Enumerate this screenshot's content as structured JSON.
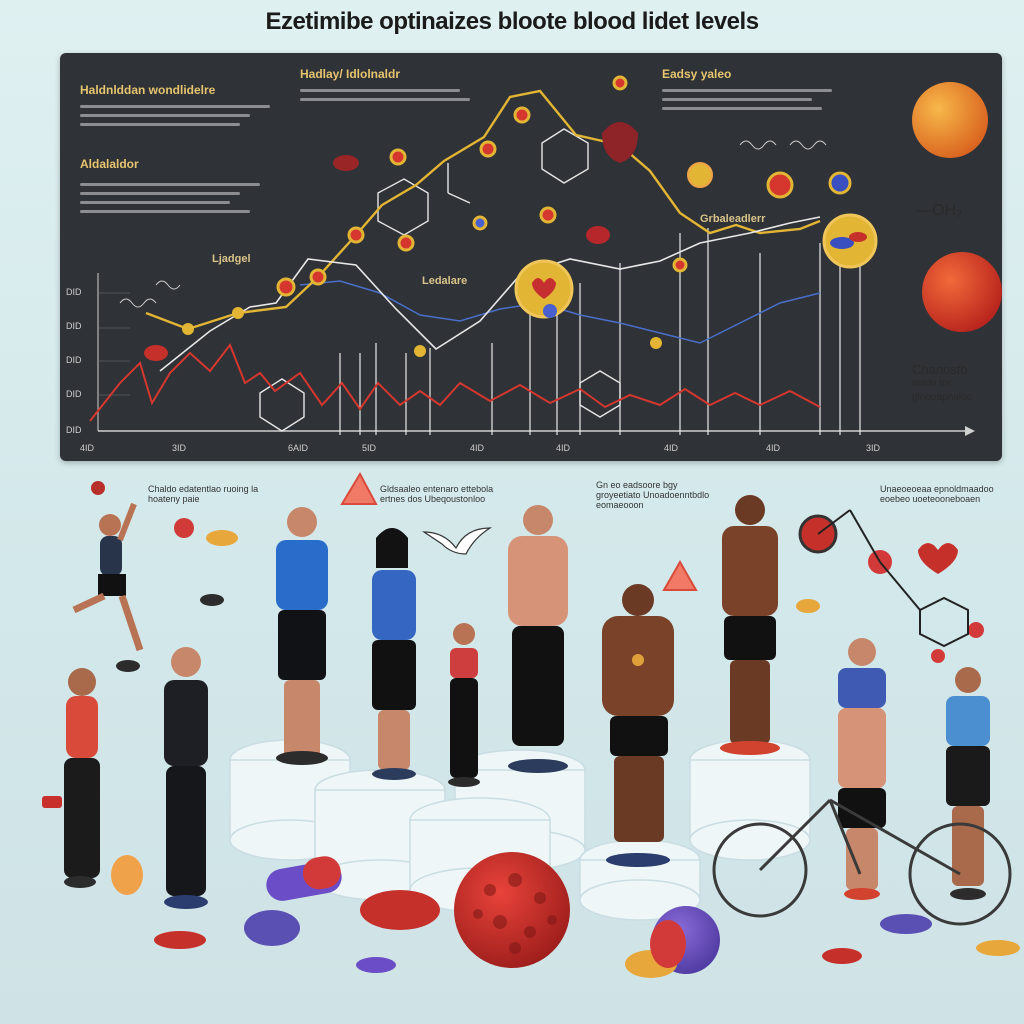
{
  "title": "Ezetimibe optinaizes bloote blood lidet levels",
  "panel": {
    "heading_left": "Haldnlddan wondlidelre",
    "heading_mid": "Hadlay/ Idlolnaldr",
    "heading_right": "Eadsy yaleo",
    "subheading_left": "Aldalaldor",
    "small_labels": [
      "Ljadgel",
      "Ledalare",
      "Grbaleadlerr"
    ],
    "y_ticks": [
      "DID",
      "DID",
      "DID",
      "DID",
      "DID",
      "DD"
    ],
    "x_ticks": [
      "4ID",
      "3ID",
      "6AID",
      "5ID",
      "4ID",
      "4ID",
      "4ID",
      "4ID",
      "3ID"
    ]
  },
  "outside_labels": {
    "oh": "—OH₂",
    "chanostb_1": "Chanostb",
    "chanostb_2": "anldn toc",
    "chanostb_3": "glnooapnaloc"
  },
  "floor_captions": [
    "Chaldo edatentlao ruoing la hoateny paie",
    "Gldsaaleo entenaro ettebola ertnes dos Ubeqoustonloo",
    "Gn eo eadsoore bgy groyeetiato Unoadoenntbdlo eomaeooon",
    "Unaeoeoeaa epnoldmaadoo eoebeo uoeteooneboaen"
  ],
  "colors": {
    "panel_bg": "#2f3236",
    "line_yellow": "#e2b534",
    "line_red": "#d5372f",
    "line_white": "#e8e8e8",
    "accent_orange": "#f0a24b",
    "pill_purple": "#5a4fb3",
    "pill_red": "#c6302b"
  }
}
